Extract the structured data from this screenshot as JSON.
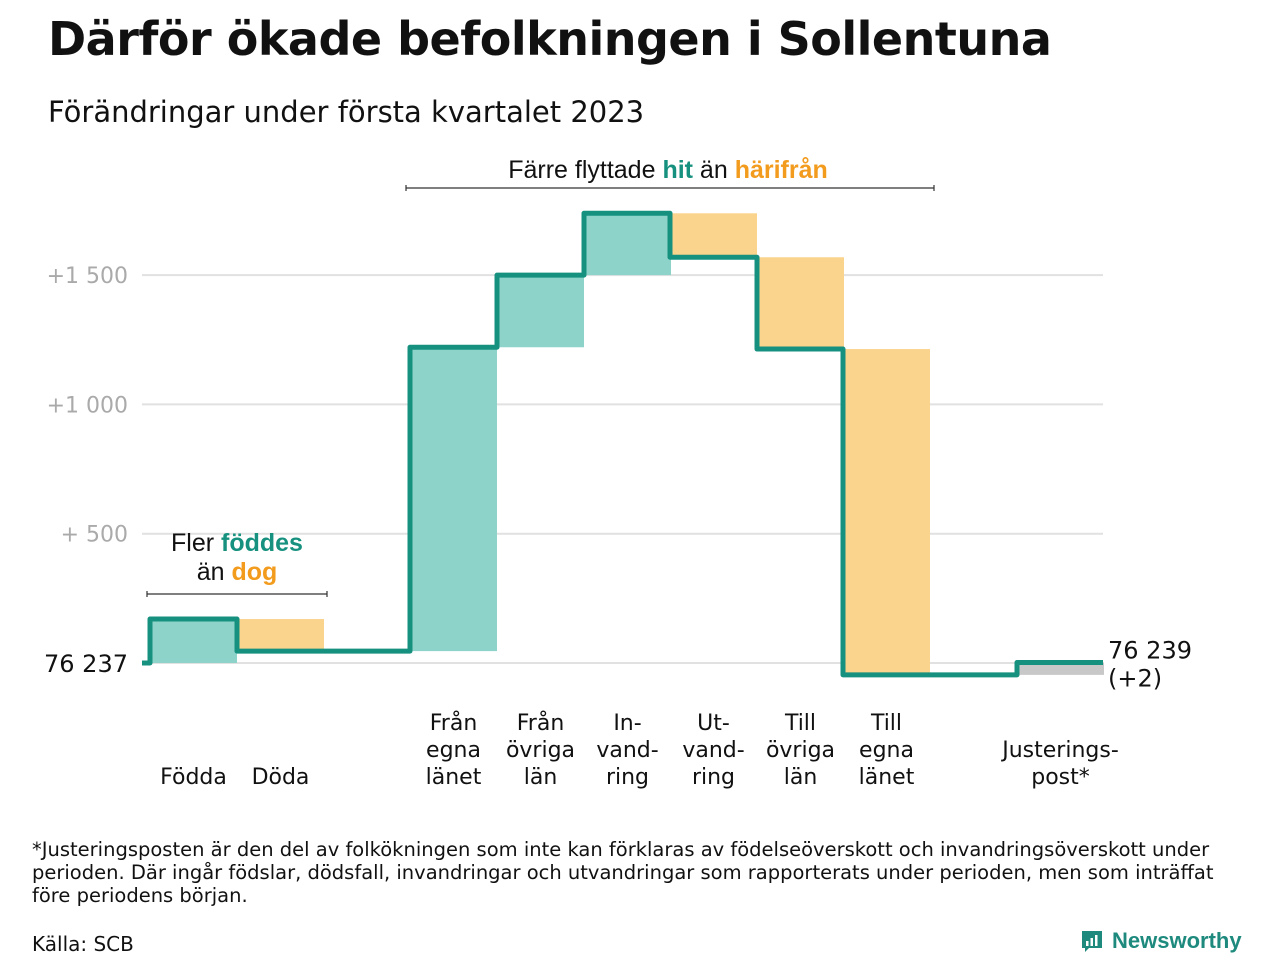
{
  "title": "Därför ökade befolkningen i Sollentuna",
  "subtitle": "Förändringar under första kvartalet 2023",
  "footnote": "*Justeringsposten är den del av folkökningen som inte kan förklaras av födelseöverskott och invandringsöverskott under perioden. Där ingår födslar, dödsfall, invandringar och utvandringar som rapporterats under perioden, men som inträffat före periodens början.",
  "source": "Källa: SCB",
  "brand": "Newsworthy",
  "colors": {
    "increase": "#8dd3ca",
    "decrease": "#fad38c",
    "adjustment": "#c8c8c8",
    "line": "#17917f",
    "hit": "#17917f",
    "away": "#f29b1d",
    "grid": "#e1e1e1",
    "tick": "#aaaaaa"
  },
  "chart_data": {
    "type": "waterfall",
    "title": "Därför ökade befolkningen i Sollentuna",
    "subtitle": "Förändringar under första kvartalet 2023",
    "start_value": 76237,
    "start_label": "76 237",
    "end_value": 76239,
    "end_label": "76 239",
    "end_change_label": "(+2)",
    "ylim": [
      -80,
      1800
    ],
    "yticks": [
      {
        "value": 500,
        "label": "+ 500"
      },
      {
        "value": 1000,
        "label": "+1 000"
      },
      {
        "value": 1500,
        "label": "+1 500"
      }
    ],
    "grid": true,
    "categories": [
      {
        "label": [
          "Födda"
        ],
        "change": 170,
        "kind": "increase"
      },
      {
        "label": [
          "Döda"
        ],
        "change": -124,
        "kind": "decrease"
      },
      {
        "label": [
          "Från",
          "egna",
          "länet"
        ],
        "change": 1175,
        "kind": "increase"
      },
      {
        "label": [
          "Från",
          "övriga",
          "län"
        ],
        "change": 279,
        "kind": "increase"
      },
      {
        "label": [
          "In-",
          "vand-",
          "ring"
        ],
        "change": 239,
        "kind": "increase"
      },
      {
        "label": [
          "Ut-",
          "vand-",
          "ring"
        ],
        "change": -170,
        "kind": "decrease"
      },
      {
        "label": [
          "Till",
          "övriga",
          "län"
        ],
        "change": -355,
        "kind": "decrease"
      },
      {
        "label": [
          "Till",
          "egna",
          "länet"
        ],
        "change": -1260,
        "kind": "decrease"
      },
      {
        "label": [
          "Justerings-",
          "post*"
        ],
        "change": 48,
        "kind": "adjustment"
      }
    ],
    "annotations": [
      {
        "group": "natural",
        "parts": [
          {
            "text": "Fler ",
            "style": "plain"
          },
          {
            "text": "föddes",
            "style": "hit"
          },
          {
            "text": "än ",
            "style": "plain"
          },
          {
            "text": "dog",
            "style": "away"
          }
        ]
      },
      {
        "group": "migration",
        "parts": [
          {
            "text": "Färre flyttade ",
            "style": "plain"
          },
          {
            "text": "hit",
            "style": "hit"
          },
          {
            "text": " än ",
            "style": "plain"
          },
          {
            "text": "härifrån",
            "style": "away"
          }
        ]
      }
    ]
  }
}
